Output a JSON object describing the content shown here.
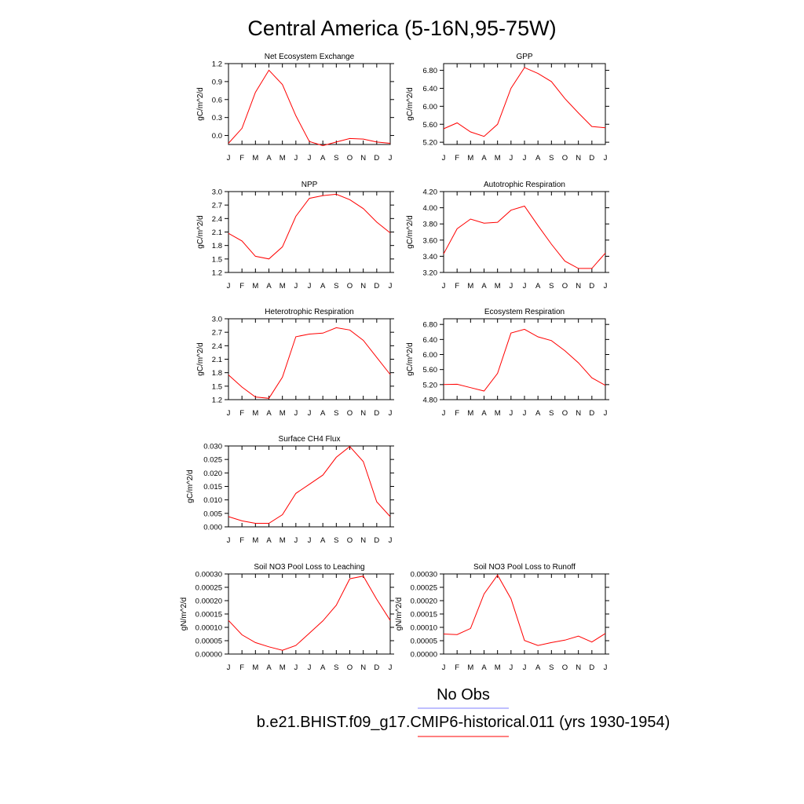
{
  "figure": {
    "title": "Central America (5-16N,95-75W)",
    "legend": [
      {
        "label": "No Obs",
        "color": "#7f7fff"
      },
      {
        "label": "b.e21.BHIST.f09_g17.CMIP6-historical.011 (yrs 1930-1954)",
        "color": "#ff0000"
      }
    ]
  },
  "chart_data": [
    {
      "type": "line",
      "title": "Net Ecosystem Exchange",
      "ylabel": "gC/m^2/d",
      "categories": [
        "J",
        "F",
        "M",
        "A",
        "M",
        "J",
        "J",
        "A",
        "S",
        "O",
        "N",
        "D",
        "J"
      ],
      "ylim": [
        -0.15,
        1.2
      ],
      "yticks": [
        0.0,
        0.3,
        0.6,
        0.9,
        1.2
      ],
      "yticklabels": [
        "0.0",
        "0.3",
        "0.6",
        "0.9",
        "1.2"
      ],
      "series": [
        {
          "values": [
            -0.13,
            0.12,
            0.72,
            1.09,
            0.85,
            0.33,
            -0.1,
            -0.17,
            -0.11,
            -0.05,
            -0.06,
            -0.11,
            -0.13
          ],
          "color": "#ff0000"
        }
      ]
    },
    {
      "type": "line",
      "title": "GPP",
      "ylabel": "gC/m^2/d",
      "categories": [
        "J",
        "F",
        "M",
        "A",
        "M",
        "J",
        "J",
        "A",
        "S",
        "O",
        "N",
        "D",
        "J"
      ],
      "ylim": [
        5.15,
        6.95
      ],
      "yticks": [
        5.2,
        5.6,
        6.0,
        6.4,
        6.8
      ],
      "yticklabels": [
        "5.20",
        "5.60",
        "6.00",
        "6.40",
        "6.80"
      ],
      "series": [
        {
          "values": [
            5.5,
            5.63,
            5.43,
            5.33,
            5.6,
            6.4,
            6.86,
            6.73,
            6.55,
            6.17,
            5.85,
            5.55,
            5.52
          ],
          "color": "#ff0000"
        }
      ]
    },
    {
      "type": "line",
      "title": "NPP",
      "ylabel": "gC/m^2/d",
      "categories": [
        "J",
        "F",
        "M",
        "A",
        "M",
        "J",
        "J",
        "A",
        "S",
        "O",
        "N",
        "D",
        "J"
      ],
      "ylim": [
        1.2,
        3.0
      ],
      "yticks": [
        1.2,
        1.5,
        1.8,
        2.1,
        2.4,
        2.7,
        3.0
      ],
      "yticklabels": [
        "1.2",
        "1.5",
        "1.8",
        "2.1",
        "2.4",
        "2.7",
        "3.0"
      ],
      "series": [
        {
          "values": [
            2.07,
            1.9,
            1.56,
            1.5,
            1.77,
            2.45,
            2.85,
            2.91,
            2.94,
            2.82,
            2.62,
            2.32,
            2.08
          ],
          "color": "#ff0000"
        }
      ]
    },
    {
      "type": "line",
      "title": "Autotrophic Respiration",
      "ylabel": "gC/m^2/d",
      "categories": [
        "J",
        "F",
        "M",
        "A",
        "M",
        "J",
        "J",
        "A",
        "S",
        "O",
        "N",
        "D",
        "J"
      ],
      "ylim": [
        3.2,
        4.2
      ],
      "yticks": [
        3.2,
        3.4,
        3.6,
        3.8,
        4.0,
        4.2
      ],
      "yticklabels": [
        "3.20",
        "3.40",
        "3.60",
        "3.80",
        "4.00",
        "4.20"
      ],
      "series": [
        {
          "values": [
            3.43,
            3.74,
            3.86,
            3.81,
            3.82,
            3.97,
            4.02,
            3.78,
            3.55,
            3.34,
            3.25,
            3.25,
            3.44
          ],
          "color": "#ff0000"
        }
      ]
    },
    {
      "type": "line",
      "title": "Heterotrophic Respiration",
      "ylabel": "gC/m^2/d",
      "categories": [
        "J",
        "F",
        "M",
        "A",
        "M",
        "J",
        "J",
        "A",
        "S",
        "O",
        "N",
        "D",
        "J"
      ],
      "ylim": [
        1.2,
        3.0
      ],
      "yticks": [
        1.2,
        1.5,
        1.8,
        2.1,
        2.4,
        2.7,
        3.0
      ],
      "yticklabels": [
        "1.2",
        "1.5",
        "1.8",
        "2.1",
        "2.4",
        "2.7",
        "3.0"
      ],
      "series": [
        {
          "values": [
            1.75,
            1.48,
            1.26,
            1.23,
            1.7,
            2.6,
            2.66,
            2.68,
            2.8,
            2.75,
            2.52,
            2.14,
            1.76
          ],
          "color": "#ff0000"
        }
      ]
    },
    {
      "type": "line",
      "title": "Ecosystem Respiration",
      "ylabel": "gC/m^2/d",
      "categories": [
        "J",
        "F",
        "M",
        "A",
        "M",
        "J",
        "J",
        "A",
        "S",
        "O",
        "N",
        "D",
        "J"
      ],
      "ylim": [
        4.8,
        6.95
      ],
      "yticks": [
        4.8,
        5.2,
        5.6,
        6.0,
        6.4,
        6.8
      ],
      "yticklabels": [
        "4.80",
        "5.20",
        "5.60",
        "6.00",
        "6.40",
        "6.80"
      ],
      "series": [
        {
          "values": [
            5.2,
            5.21,
            5.12,
            5.03,
            5.5,
            6.57,
            6.67,
            6.47,
            6.37,
            6.1,
            5.78,
            5.38,
            5.18
          ],
          "color": "#ff0000"
        }
      ]
    },
    {
      "type": "line",
      "title": "Surface CH4 Flux",
      "ylabel": "gC/m^2/d",
      "categories": [
        "J",
        "F",
        "M",
        "A",
        "M",
        "J",
        "J",
        "A",
        "S",
        "O",
        "N",
        "D",
        "J"
      ],
      "ylim": [
        0.0,
        0.03
      ],
      "yticks": [
        0.0,
        0.005,
        0.01,
        0.015,
        0.02,
        0.025,
        0.03
      ],
      "yticklabels": [
        "0.000",
        "0.005",
        "0.010",
        "0.015",
        "0.020",
        "0.025",
        "0.030"
      ],
      "series": [
        {
          "values": [
            0.0038,
            0.0022,
            0.0013,
            0.0013,
            0.0045,
            0.0124,
            0.0158,
            0.0192,
            0.0258,
            0.0298,
            0.0242,
            0.0093,
            0.0038
          ],
          "color": "#ff0000"
        }
      ]
    },
    {
      "type": "line",
      "title": "Soil NO3 Pool Loss to Leaching",
      "ylabel": "gN/m^2/d",
      "categories": [
        "J",
        "F",
        "M",
        "A",
        "M",
        "J",
        "J",
        "A",
        "S",
        "O",
        "N",
        "D",
        "J"
      ],
      "ylim": [
        0.0,
        0.0003
      ],
      "yticks": [
        0.0,
        5e-05,
        0.0001,
        0.00015,
        0.0002,
        0.00025,
        0.0003
      ],
      "yticklabels": [
        "0.00000",
        "0.00005",
        "0.00010",
        "0.00015",
        "0.00020",
        "0.00025",
        "0.00030"
      ],
      "series": [
        {
          "values": [
            0.000126,
            7.2e-05,
            4.3e-05,
            2.7e-05,
            1.4e-05,
            3.2e-05,
            7.8e-05,
            0.000124,
            0.000183,
            0.000282,
            0.000292,
            0.000205,
            0.000126
          ],
          "color": "#ff0000"
        }
      ]
    },
    {
      "type": "line",
      "title": "Soil NO3 Pool Loss to Runoff",
      "ylabel": "gN/m^2/d",
      "categories": [
        "J",
        "F",
        "M",
        "A",
        "M",
        "J",
        "J",
        "A",
        "S",
        "O",
        "N",
        "D",
        "J"
      ],
      "ylim": [
        0.0,
        0.0003
      ],
      "yticks": [
        0.0,
        5e-05,
        0.0001,
        0.00015,
        0.0002,
        0.00025,
        0.0003
      ],
      "yticklabels": [
        "0.00000",
        "0.00005",
        "0.00010",
        "0.00015",
        "0.00020",
        "0.00025",
        "0.00030"
      ],
      "series": [
        {
          "values": [
            7.5e-05,
            7.3e-05,
            9.6e-05,
            0.000225,
            0.000296,
            0.000207,
            5.1e-05,
            3.2e-05,
            4.3e-05,
            5.2e-05,
            6.7e-05,
            4.5e-05,
            7.7e-05
          ],
          "color": "#ff0000"
        }
      ]
    }
  ]
}
